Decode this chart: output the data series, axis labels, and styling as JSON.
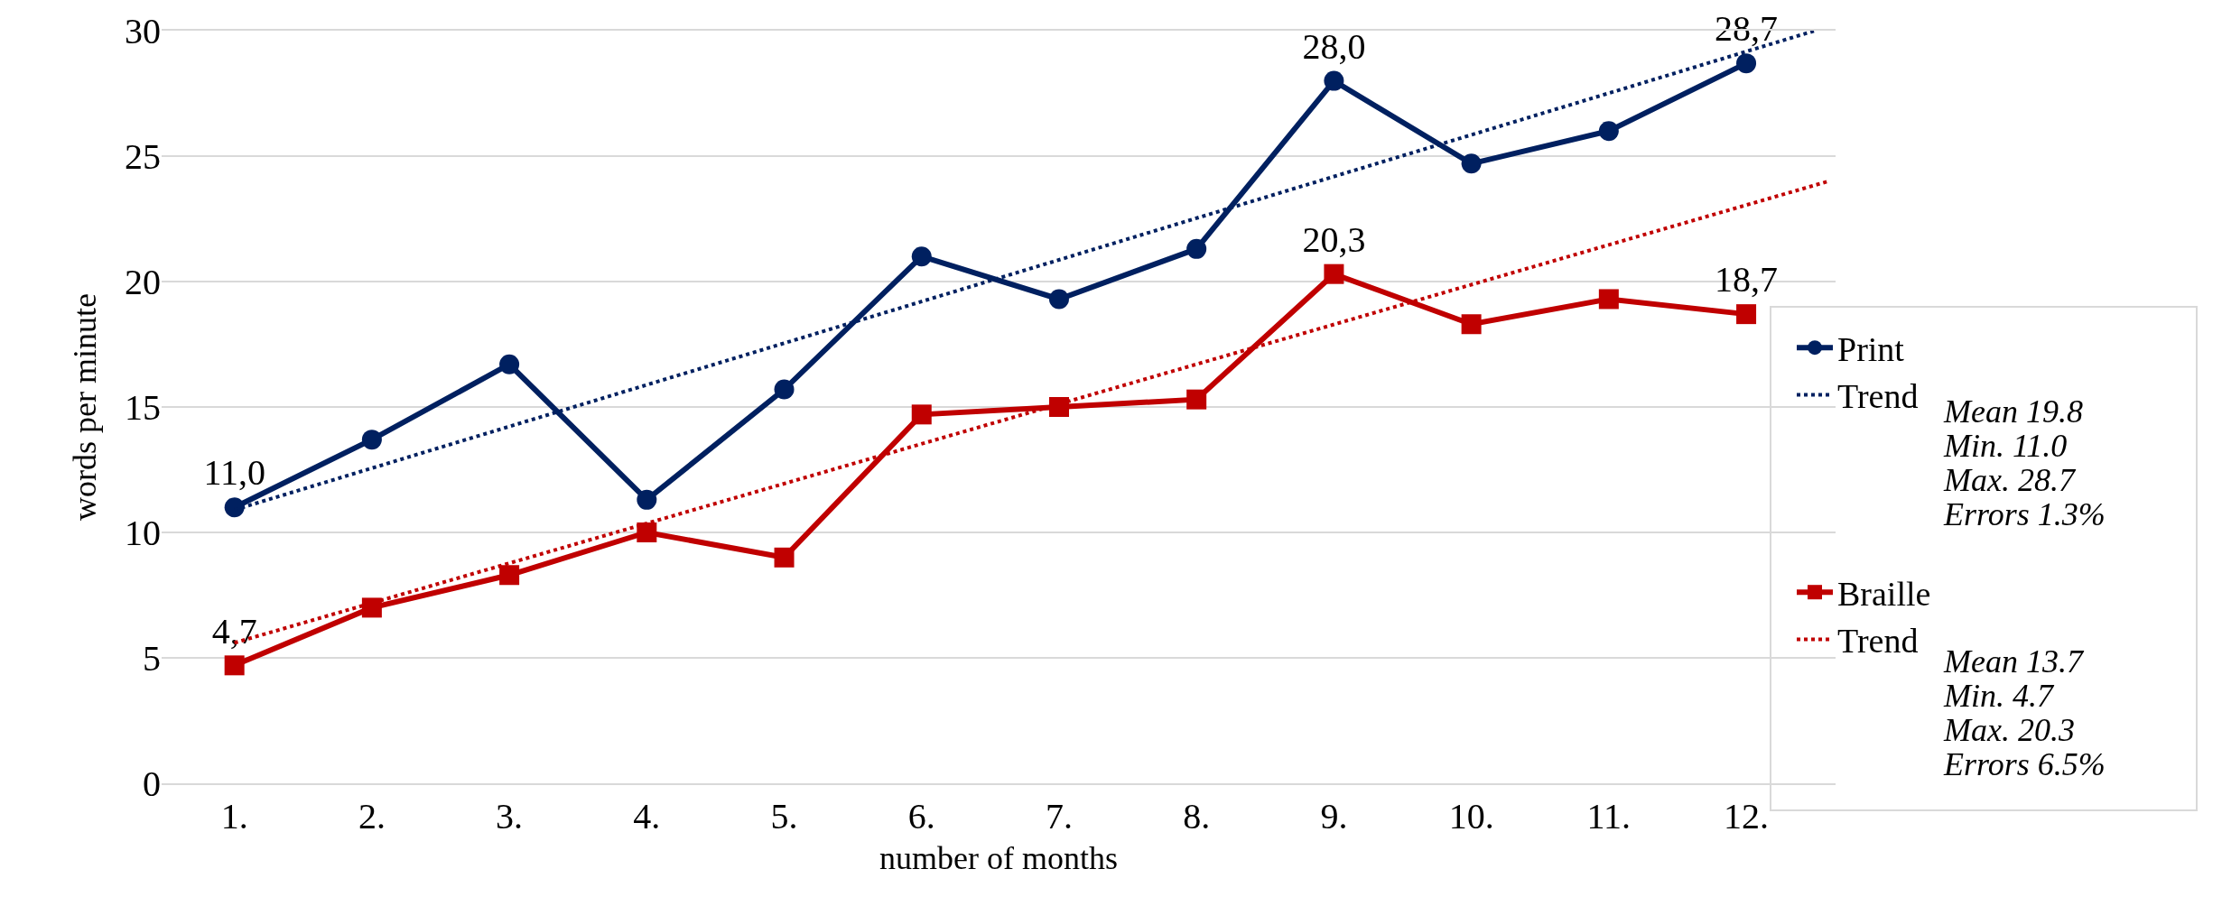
{
  "chart_data": {
    "type": "line",
    "xlabel": "number of months",
    "ylabel": "words per minute",
    "x": [
      1,
      2,
      3,
      4,
      5,
      6,
      7,
      8,
      9,
      10,
      11,
      12
    ],
    "xlim": [
      0.47,
      12.65
    ],
    "xticks": [
      {
        "value": 1,
        "label": "1."
      },
      {
        "value": 2,
        "label": "2."
      },
      {
        "value": 3,
        "label": "3."
      },
      {
        "value": 4,
        "label": "4."
      },
      {
        "value": 5,
        "label": "5."
      },
      {
        "value": 6,
        "label": "6."
      },
      {
        "value": 7,
        "label": "7."
      },
      {
        "value": 8,
        "label": "8."
      },
      {
        "value": 9,
        "label": "9."
      },
      {
        "value": 10,
        "label": "10."
      },
      {
        "value": 11,
        "label": "11."
      },
      {
        "value": 12,
        "label": "12."
      }
    ],
    "ylim": [
      0,
      30
    ],
    "yticks": [
      0,
      5,
      10,
      15,
      20,
      25,
      30
    ],
    "grid": "y",
    "legend": "right",
    "series": [
      {
        "name": "Print",
        "color": "#002060",
        "marker": "circle",
        "line_style": "solid",
        "values": [
          11.0,
          13.7,
          16.7,
          11.3,
          15.7,
          21.0,
          19.3,
          21.3,
          28.0,
          24.7,
          26.0,
          28.7
        ],
        "value_labels": [
          "11,0",
          null,
          null,
          null,
          null,
          null,
          null,
          null,
          "28,0",
          null,
          null,
          "28,7"
        ]
      },
      {
        "name": "Trend",
        "type": "line",
        "color": "#002060",
        "marker": "none",
        "line_style": "dotted",
        "x": [
          1,
          12.5
        ],
        "values": [
          10.9,
          30.0
        ]
      },
      {
        "name": "Braille",
        "color": "#c00000",
        "marker": "square",
        "line_style": "solid",
        "values": [
          4.7,
          7.0,
          8.3,
          10.0,
          9.0,
          14.7,
          15.0,
          15.3,
          20.3,
          18.3,
          19.3,
          18.7
        ],
        "value_labels": [
          "4,7",
          null,
          null,
          null,
          null,
          null,
          null,
          null,
          "20,3",
          null,
          null,
          "18,7"
        ]
      },
      {
        "name": "Trend",
        "type": "line",
        "color": "#c00000",
        "marker": "none",
        "line_style": "dotted",
        "x": [
          1,
          12.6
        ],
        "values": [
          5.6,
          24.0
        ]
      }
    ],
    "annotations": [
      "Mean 19.8",
      "Min. 11.0",
      "Max. 28.7",
      "Errors 1.3%",
      "Mean 13.7",
      "Min. 4.7",
      "Max. 20.3",
      "Errors 6.5%"
    ]
  }
}
